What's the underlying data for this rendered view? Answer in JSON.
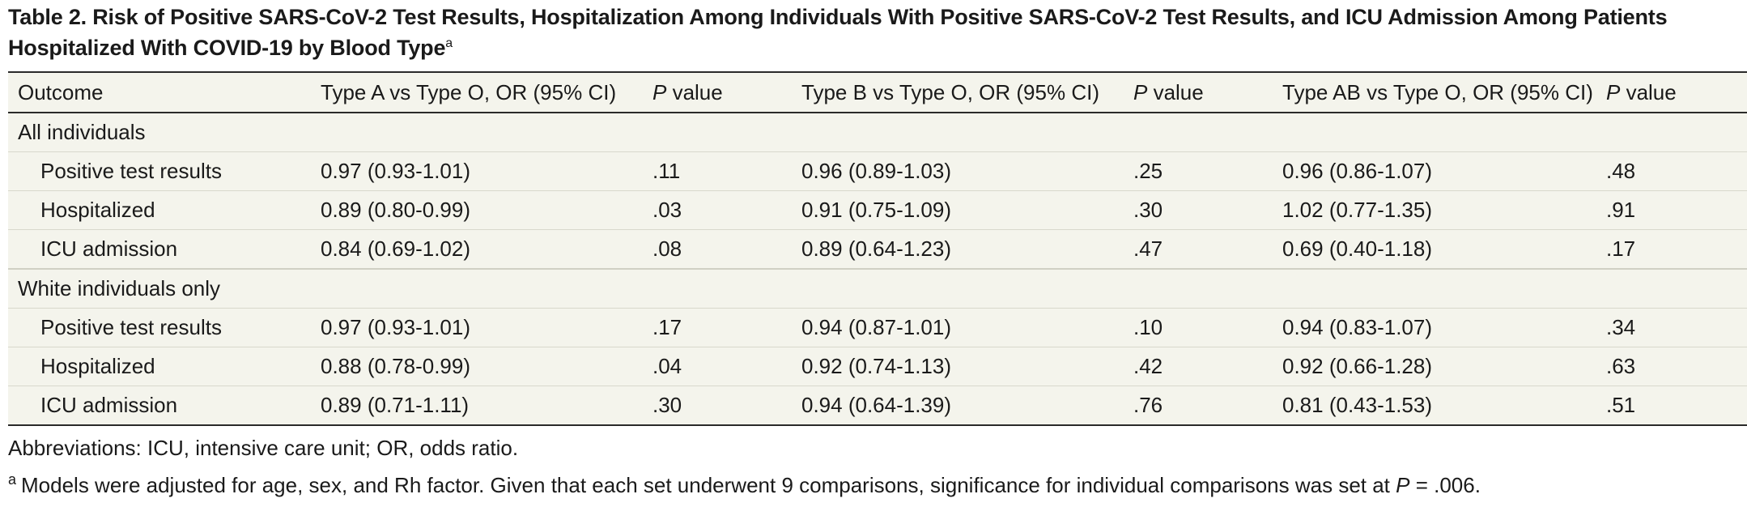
{
  "title": {
    "text": "Table 2. Risk of Positive SARS-CoV-2 Test Results, Hospitalization Among Individuals With Positive SARS-CoV-2 Test Results, and ICU Admission Among Patients Hospitalized With COVID-19 by Blood Type",
    "footnote_marker": "a"
  },
  "table": {
    "headers": {
      "outcome": "Outcome",
      "type_a": "Type A vs Type O, OR (95% CI)",
      "p_letter": "P",
      "p_value_word": " value",
      "type_b": "Type B vs Type O, OR (95% CI)",
      "type_ab": "Type AB vs Type O, OR (95% CI)"
    },
    "groups": [
      {
        "label": "All individuals",
        "rows": [
          {
            "outcome": "Positive test results",
            "a_or": "0.97 (0.93-1.01)",
            "a_p": ".11",
            "b_or": "0.96 (0.89-1.03)",
            "b_p": ".25",
            "ab_or": "0.96 (0.86-1.07)",
            "ab_p": ".48"
          },
          {
            "outcome": "Hospitalized",
            "a_or": "0.89 (0.80-0.99)",
            "a_p": ".03",
            "b_or": "0.91 (0.75-1.09)",
            "b_p": ".30",
            "ab_or": "1.02 (0.77-1.35)",
            "ab_p": ".91"
          },
          {
            "outcome": "ICU admission",
            "a_or": "0.84 (0.69-1.02)",
            "a_p": ".08",
            "b_or": "0.89 (0.64-1.23)",
            "b_p": ".47",
            "ab_or": "0.69 (0.40-1.18)",
            "ab_p": ".17"
          }
        ]
      },
      {
        "label": "White individuals only",
        "rows": [
          {
            "outcome": "Positive test results",
            "a_or": "0.97 (0.93-1.01)",
            "a_p": ".17",
            "b_or": "0.94 (0.87-1.01)",
            "b_p": ".10",
            "ab_or": "0.94 (0.83-1.07)",
            "ab_p": ".34"
          },
          {
            "outcome": "Hospitalized",
            "a_or": "0.88 (0.78-0.99)",
            "a_p": ".04",
            "b_or": "0.92 (0.74-1.13)",
            "b_p": ".42",
            "ab_or": "0.92 (0.66-1.28)",
            "ab_p": ".63"
          },
          {
            "outcome": "ICU admission",
            "a_or": "0.89 (0.71-1.11)",
            "a_p": ".30",
            "b_or": "0.94 (0.64-1.39)",
            "b_p": ".76",
            "ab_or": "0.81 (0.43-1.53)",
            "ab_p": ".51"
          }
        ]
      }
    ]
  },
  "footnotes": {
    "abbreviations": "Abbreviations: ICU, intensive care unit; OR, odds ratio.",
    "note_marker": "a",
    "note_text": "Models were adjusted for age, sex, and Rh factor. Given that each set underwent 9 comparisons, significance for individual comparisons was set at ",
    "note_p_letter": "P",
    "note_tail": " = .006."
  },
  "colors": {
    "table_background": "#f4f4ec",
    "rule": "#2a2a2a",
    "row_divider": "#d8d8cc",
    "text": "#1a1a1a"
  }
}
